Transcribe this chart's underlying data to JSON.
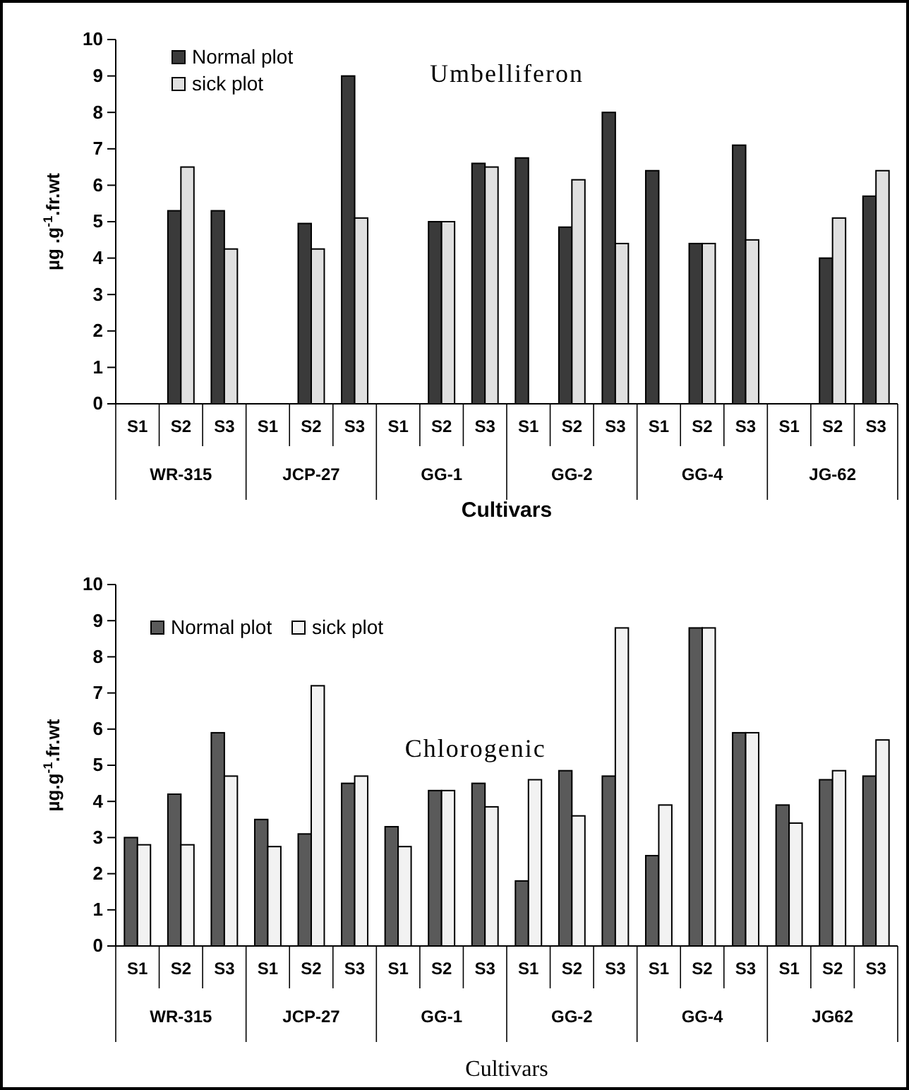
{
  "chart_data": [
    {
      "type": "bar",
      "title": "Umbelliferon",
      "xlabel": "Cultivars",
      "ylabel": "µg .g$^{-1}$.fr.wt",
      "categories": [
        "S1",
        "S2",
        "S3",
        "S1",
        "S2",
        "S3",
        "S1",
        "S2",
        "S3",
        "S1",
        "S2",
        "S3",
        "S1",
        "S2",
        "S3",
        "S1",
        "S2",
        "S3"
      ],
      "annotations": [
        "WR-315",
        "JCP-27",
        "GG-1",
        "GG-2",
        "GG-4",
        "JG-62"
      ],
      "series": [
        {
          "name": "Normal plot",
          "color": "#3a3a3a",
          "values": [
            null,
            5.3,
            5.3,
            null,
            4.95,
            9.0,
            null,
            5.0,
            6.6,
            6.75,
            4.85,
            8.0,
            6.4,
            4.4,
            7.1,
            null,
            4.0,
            5.7
          ]
        },
        {
          "name": "sick plot",
          "color": "#e0e0e0",
          "values": [
            null,
            6.5,
            4.25,
            null,
            4.25,
            5.1,
            null,
            5.0,
            6.5,
            null,
            6.15,
            4.4,
            null,
            4.4,
            4.5,
            null,
            5.1,
            6.4
          ]
        }
      ],
      "ylim": [
        0,
        10
      ],
      "yticks": [
        0,
        1,
        2,
        3,
        4,
        5,
        6,
        7,
        8,
        9,
        10
      ],
      "grid": false,
      "legend": "top left"
    },
    {
      "type": "bar",
      "title": "Chlorogenic",
      "xlabel": "Cultivars",
      "ylabel": "µg.g$^{-1}$.fr.wt",
      "categories": [
        "S1",
        "S2",
        "S3",
        "S1",
        "S2",
        "S3",
        "S1",
        "S2",
        "S3",
        "S1",
        "S2",
        "S3",
        "S1",
        "S2",
        "S3",
        "S1",
        "S2",
        "S3"
      ],
      "annotations": [
        "WR-315",
        "JCP-27",
        "GG-1",
        "GG-2",
        "GG-4",
        "JG62"
      ],
      "series": [
        {
          "name": "Normal plot",
          "color": "#5a5a5a",
          "values": [
            3.0,
            4.2,
            5.9,
            3.5,
            3.1,
            4.5,
            3.3,
            4.3,
            4.5,
            1.8,
            4.85,
            4.7,
            2.5,
            8.8,
            5.9,
            3.9,
            4.6,
            4.7
          ]
        },
        {
          "name": "sick plot",
          "color": "#f2f2f2",
          "values": [
            2.8,
            2.8,
            4.7,
            2.75,
            7.2,
            4.7,
            2.75,
            4.3,
            3.85,
            4.6,
            3.6,
            8.8,
            3.9,
            8.8,
            5.9,
            3.4,
            4.85,
            5.7
          ]
        }
      ],
      "ylim": [
        0,
        10
      ],
      "yticks": [
        0,
        1,
        2,
        3,
        4,
        5,
        6,
        7,
        8,
        9,
        10
      ],
      "grid": false,
      "legend": "top left"
    }
  ]
}
